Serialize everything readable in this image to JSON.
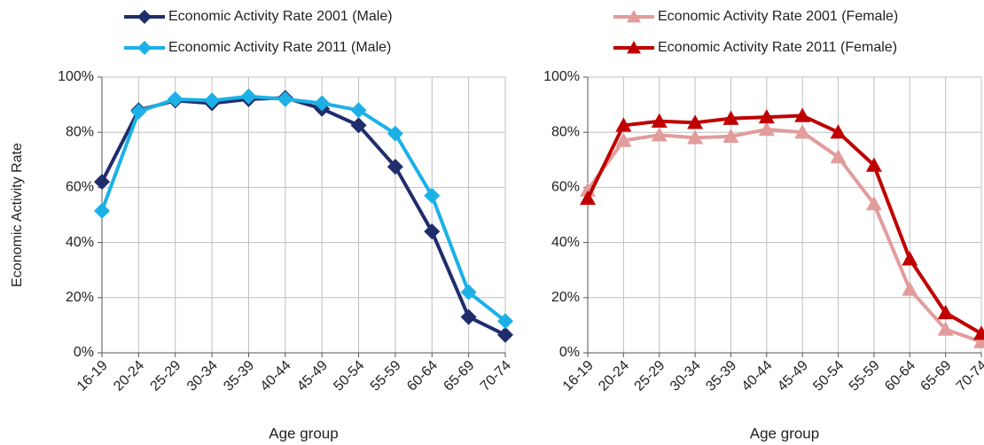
{
  "chart_data": [
    {
      "type": "line",
      "categories": [
        "16-19",
        "20-24",
        "25-29",
        "30-34",
        "35-39",
        "40-44",
        "45-49",
        "50-54",
        "55-59",
        "60-64",
        "65-69",
        "70-74"
      ],
      "x_label": "Age group",
      "y_label": "Economic Activity Rate",
      "ylim": [
        0,
        100
      ],
      "yticks": [
        {
          "value": 0,
          "label": "0%"
        },
        {
          "value": 20,
          "label": "20%"
        },
        {
          "value": 40,
          "label": "40%"
        },
        {
          "value": 60,
          "label": "60%"
        },
        {
          "value": 80,
          "label": "80%"
        },
        {
          "value": 100,
          "label": "100%"
        }
      ],
      "grid": true,
      "series": [
        {
          "name": "Economic Activity Rate 2001 (Male)",
          "color": "#1f2d6b",
          "marker": "diamond",
          "values": [
            62,
            88,
            91.5,
            90.5,
            92,
            92.5,
            88.5,
            82.5,
            67.5,
            44,
            13,
            6.5
          ]
        },
        {
          "name": "Economic Activity Rate 2011 (Male)",
          "color": "#1bb1e7",
          "marker": "diamond",
          "values": [
            51.5,
            87.5,
            92,
            91.5,
            93,
            92,
            90.5,
            88,
            79.5,
            57,
            22,
            11.5
          ]
        }
      ]
    },
    {
      "type": "line",
      "categories": [
        "16-19",
        "20-24",
        "25-29",
        "30-34",
        "35-39",
        "40-44",
        "45-49",
        "50-54",
        "55-59",
        "60-64",
        "65-69",
        "70-74"
      ],
      "x_label": "Age group",
      "ylim": [
        0,
        100
      ],
      "yticks": [
        {
          "value": 0,
          "label": "0%"
        },
        {
          "value": 20,
          "label": "20%"
        },
        {
          "value": 40,
          "label": "40%"
        },
        {
          "value": 60,
          "label": "60%"
        },
        {
          "value": 80,
          "label": "80%"
        },
        {
          "value": 100,
          "label": "100%"
        }
      ],
      "grid": true,
      "series": [
        {
          "name": "Economic Activity Rate 2001 (Female)",
          "color": "#e29c9c",
          "marker": "triangle",
          "values": [
            59,
            77,
            79,
            78,
            78.5,
            81,
            80,
            71,
            54,
            23,
            8.5,
            4
          ]
        },
        {
          "name": "Economic Activity Rate 2011 (Female)",
          "color": "#c00000",
          "marker": "triangle",
          "values": [
            56,
            82.5,
            84,
            83.5,
            85,
            85.5,
            86,
            80,
            68,
            34,
            14.5,
            7
          ]
        }
      ]
    }
  ]
}
